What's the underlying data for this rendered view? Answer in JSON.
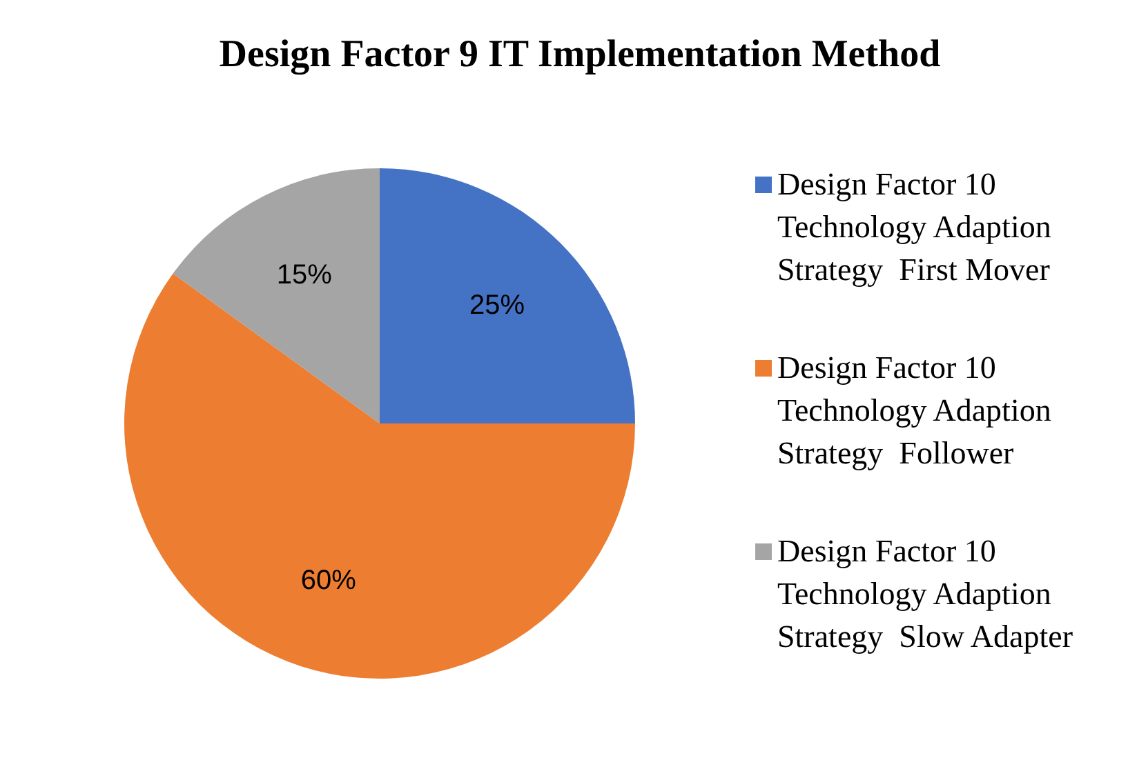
{
  "chart_data": {
    "type": "pie",
    "title": "Design Factor 9 IT Implementation Method",
    "categories": [
      "Design Factor 10 Technology Adaption Strategy  First Mover",
      "Design Factor 10 Technology Adaption Strategy  Follower",
      "Design Factor 10 Technology Adaption Strategy  Slow Adapter"
    ],
    "values": [
      25,
      60,
      15
    ],
    "colors": [
      "#4472c4",
      "#ed7d31",
      "#a5a5a5"
    ],
    "value_labels": [
      "25%",
      "60%",
      "15%"
    ],
    "legend": "right"
  }
}
